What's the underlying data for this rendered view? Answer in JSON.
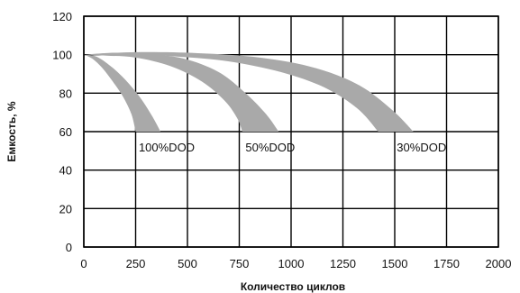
{
  "chart_data": {
    "type": "area",
    "xlabel": "Количество циклов",
    "ylabel": "Емкость, %",
    "xlim": [
      0,
      2000
    ],
    "ylim": [
      0,
      120
    ],
    "x_ticks": [
      0,
      250,
      500,
      750,
      1000,
      1250,
      1500,
      1750,
      2000
    ],
    "y_ticks": [
      0,
      20,
      40,
      60,
      80,
      100,
      120
    ],
    "grid": true,
    "band_color": "#a9a9a9",
    "series": [
      {
        "name": "100%DOD",
        "label_at": [
          265,
          52
        ],
        "upper": [
          [
            0,
            100
          ],
          [
            60,
            99
          ],
          [
            130,
            94
          ],
          [
            200,
            87
          ],
          [
            270,
            78
          ],
          [
            330,
            68
          ],
          [
            370,
            60
          ]
        ],
        "lower": [
          [
            0,
            100
          ],
          [
            40,
            98
          ],
          [
            90,
            93
          ],
          [
            140,
            86
          ],
          [
            190,
            78
          ],
          [
            230,
            69
          ],
          [
            250,
            60
          ]
        ]
      },
      {
        "name": "50%DOD",
        "label_at": [
          780,
          52
        ],
        "upper": [
          [
            0,
            100
          ],
          [
            150,
            101
          ],
          [
            300,
            100.5
          ],
          [
            480,
            98
          ],
          [
            650,
            91
          ],
          [
            780,
            80
          ],
          [
            880,
            69
          ],
          [
            940,
            60
          ]
        ],
        "lower": [
          [
            0,
            100
          ],
          [
            110,
            99.5
          ],
          [
            250,
            98.5
          ],
          [
            420,
            94
          ],
          [
            570,
            86
          ],
          [
            680,
            76
          ],
          [
            740,
            67
          ],
          [
            765,
            60
          ]
        ]
      },
      {
        "name": "30%DOD",
        "label_at": [
          1510,
          52
        ],
        "upper": [
          [
            0,
            100
          ],
          [
            250,
            101.3
          ],
          [
            550,
            100.8
          ],
          [
            850,
            98.5
          ],
          [
            1120,
            93
          ],
          [
            1330,
            84
          ],
          [
            1490,
            71
          ],
          [
            1590,
            60
          ]
        ],
        "lower": [
          [
            0,
            100
          ],
          [
            200,
            100.5
          ],
          [
            450,
            99
          ],
          [
            700,
            96.5
          ],
          [
            950,
            91
          ],
          [
            1160,
            83
          ],
          [
            1320,
            72
          ],
          [
            1420,
            60
          ]
        ]
      }
    ]
  }
}
